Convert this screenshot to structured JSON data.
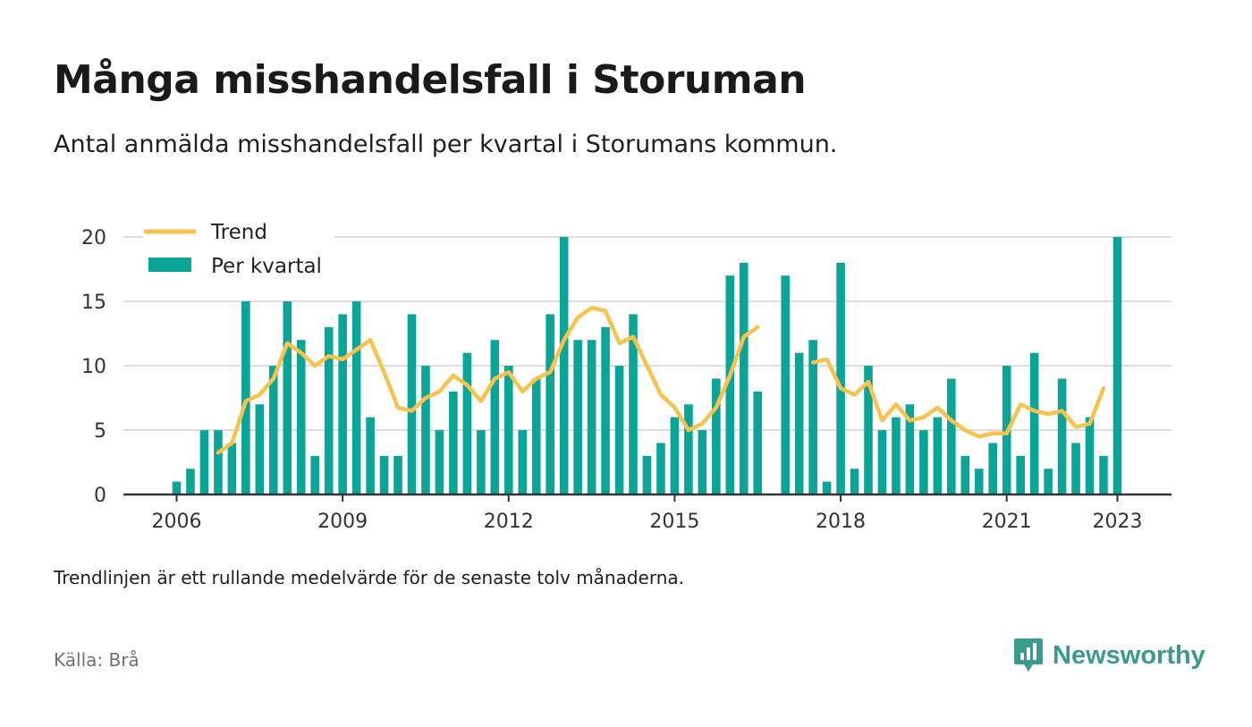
{
  "header": {
    "title": "Många misshandelsfall i Storuman",
    "subtitle": "Antal anmälda misshandelsfall per kvartal i Storumans kommun."
  },
  "footer": {
    "note": "Trendlinjen är ett rullande medelvärde för de senaste tolv månaderna.",
    "source": "Källa: Brå",
    "brand": "Newsworthy",
    "brand_icon": "bar-chart-speech-bubble-icon"
  },
  "colors": {
    "bars": "#0aa597",
    "trend": "#f8c24e",
    "grid": "#dddddd",
    "axis": "#333333",
    "brand": "#3a9a8d"
  },
  "chart_data": {
    "type": "bar",
    "x_unit": "quarter",
    "ylim": [
      0,
      20
    ],
    "yticks": [
      0,
      5,
      10,
      15,
      20
    ],
    "xticks": [
      "2006",
      "2009",
      "2012",
      "2015",
      "2018",
      "2021",
      "2023"
    ],
    "grid": true,
    "legend": "top-left",
    "categories": [
      "2006Q1",
      "2006Q2",
      "2006Q3",
      "2006Q4",
      "2007Q1",
      "2007Q2",
      "2007Q3",
      "2007Q4",
      "2008Q1",
      "2008Q2",
      "2008Q3",
      "2008Q4",
      "2009Q1",
      "2009Q2",
      "2009Q3",
      "2009Q4",
      "2010Q1",
      "2010Q2",
      "2010Q3",
      "2010Q4",
      "2011Q1",
      "2011Q2",
      "2011Q3",
      "2011Q4",
      "2012Q1",
      "2012Q2",
      "2012Q3",
      "2012Q4",
      "2013Q1",
      "2013Q2",
      "2013Q3",
      "2013Q4",
      "2014Q1",
      "2014Q2",
      "2014Q3",
      "2014Q4",
      "2015Q1",
      "2015Q2",
      "2015Q3",
      "2015Q4",
      "2016Q1",
      "2016Q2",
      "2016Q3",
      "2016Q4",
      "2017Q1",
      "2017Q2",
      "2017Q3",
      "2017Q4",
      "2018Q1",
      "2018Q2",
      "2018Q3",
      "2018Q4",
      "2019Q1",
      "2019Q2",
      "2019Q3",
      "2019Q4",
      "2020Q1",
      "2020Q2",
      "2020Q3",
      "2020Q4",
      "2021Q1",
      "2021Q2",
      "2021Q3",
      "2021Q4",
      "2022Q1",
      "2022Q2",
      "2022Q3",
      "2022Q4",
      "2023Q1"
    ],
    "series": [
      {
        "name": "Per kvartal",
        "kind": "bar",
        "values": [
          1,
          2,
          5,
          5,
          4,
          15,
          7,
          10,
          15,
          12,
          3,
          13,
          14,
          15,
          6,
          3,
          3,
          14,
          10,
          5,
          8,
          11,
          5,
          12,
          10,
          5,
          9,
          14,
          20,
          12,
          12,
          13,
          10,
          14,
          3,
          4,
          6,
          7,
          5,
          9,
          17,
          18,
          8,
          null,
          17,
          11,
          12,
          1,
          18,
          2,
          10,
          5,
          6,
          7,
          5,
          6,
          9,
          3,
          2,
          4,
          10,
          3,
          11,
          2,
          9,
          4,
          6,
          3,
          20
        ]
      },
      {
        "name": "Trend",
        "kind": "line",
        "values": [
          null,
          null,
          null,
          3.25,
          4.0,
          7.25,
          7.75,
          9.0,
          11.75,
          11.0,
          10.0,
          10.75,
          10.5,
          11.25,
          12.0,
          9.5,
          6.75,
          6.5,
          7.5,
          8.0,
          9.25,
          8.5,
          7.25,
          9.0,
          9.5,
          8.0,
          9.0,
          9.5,
          12.0,
          13.75,
          14.5,
          14.25,
          11.75,
          12.25,
          10.0,
          7.75,
          6.75,
          5.0,
          5.5,
          6.75,
          9.25,
          12.25,
          13.0,
          null,
          null,
          null,
          10.25,
          10.5,
          8.25,
          7.75,
          8.75,
          5.75,
          7.0,
          5.75,
          6.0,
          6.75,
          5.75,
          5.0,
          4.5,
          4.75,
          4.75,
          7.0,
          6.5,
          6.25,
          6.5,
          5.25,
          5.5,
          8.25,
          null
        ]
      }
    ]
  }
}
